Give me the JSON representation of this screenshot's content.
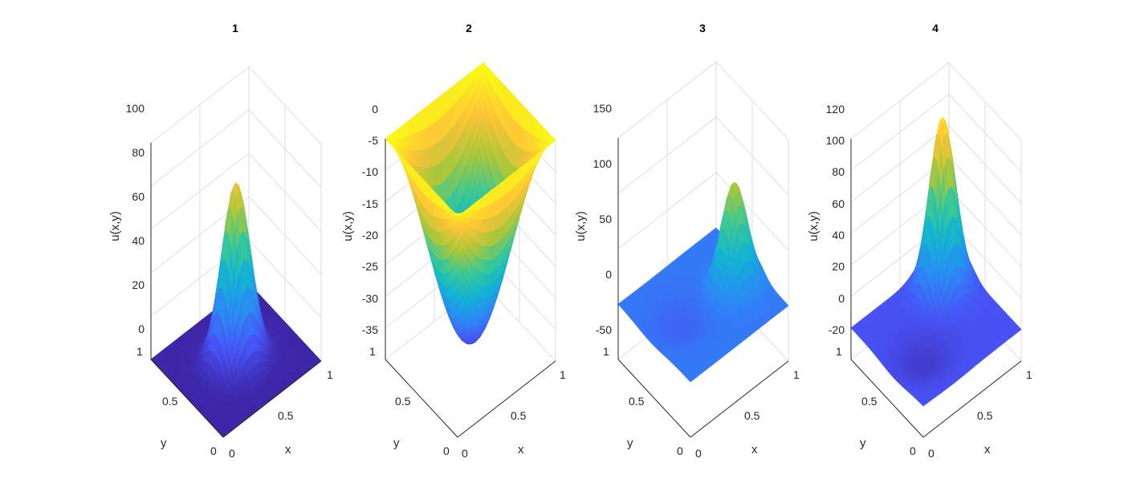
{
  "figure": {
    "background": "#ffffff"
  },
  "chart_data": [
    {
      "type": "surface",
      "title": "1",
      "xlabel": "x",
      "ylabel": "y",
      "zlabel": "u(x,y)",
      "xlim": [
        0,
        1
      ],
      "ylim": [
        0,
        1
      ],
      "zlim": [
        0,
        100
      ],
      "x_ticks": [
        "0",
        "0.5",
        "1"
      ],
      "y_ticks": [
        "0",
        "0.5",
        "1"
      ],
      "z_ticks": [
        "0",
        "20",
        "40",
        "60",
        "80",
        "100"
      ],
      "grid": true,
      "colormap": "parula",
      "surface": {
        "shape": "gaussian-peak",
        "peak_x": 0.5,
        "peak_y": 0.5,
        "peak_z": 82,
        "width": 0.12,
        "base_z": 0
      }
    },
    {
      "type": "surface",
      "title": "2",
      "xlabel": "x",
      "ylabel": "y",
      "zlabel": "u(x,y)",
      "xlim": [
        0,
        1
      ],
      "ylim": [
        0,
        1
      ],
      "zlim": [
        -35,
        0
      ],
      "x_ticks": [
        "0",
        "0.5",
        "1"
      ],
      "y_ticks": [
        "0",
        "0.5",
        "1"
      ],
      "z_ticks": [
        "-35",
        "-30",
        "-25",
        "-20",
        "-15",
        "-10",
        "-5",
        "0"
      ],
      "grid": true,
      "colormap": "parula",
      "surface": {
        "shape": "bowl",
        "min_x": 0.5,
        "min_y": 0.5,
        "min_z": -32,
        "edge_z": 0
      }
    },
    {
      "type": "surface",
      "title": "3",
      "xlabel": "x",
      "ylabel": "y",
      "zlabel": "u(x,y)",
      "xlim": [
        0,
        1
      ],
      "ylim": [
        0,
        1
      ],
      "zlim": [
        -50,
        150
      ],
      "x_ticks": [
        "0",
        "0.5",
        "1"
      ],
      "y_ticks": [
        "0",
        "0.5",
        "1"
      ],
      "z_ticks": [
        "-50",
        "0",
        "50",
        "100",
        "150"
      ],
      "grid": true,
      "colormap": "parula",
      "surface": {
        "shape": "offset-peak-with-dip",
        "peak_x": 0.78,
        "peak_y": 0.45,
        "peak_z": 95,
        "dip_x": 0.3,
        "dip_y": 0.55,
        "dip_z": -12,
        "base_z": 0
      }
    },
    {
      "type": "surface",
      "title": "4",
      "xlabel": "x",
      "ylabel": "y",
      "zlabel": "u(x,y)",
      "xlim": [
        0,
        1
      ],
      "ylim": [
        0,
        1
      ],
      "zlim": [
        -20,
        120
      ],
      "x_ticks": [
        "0",
        "0.5",
        "1"
      ],
      "y_ticks": [
        "0",
        "0.5",
        "1"
      ],
      "z_ticks": [
        "-20",
        "0",
        "20",
        "40",
        "60",
        "80",
        "100",
        "120"
      ],
      "grid": true,
      "colormap": "parula",
      "surface": {
        "shape": "offset-peak-with-dip",
        "peak_x": 0.75,
        "peak_y": 0.75,
        "peak_z": 110,
        "dip_x": 0.3,
        "dip_y": 0.4,
        "dip_z": -10,
        "base_z": 0
      }
    }
  ]
}
